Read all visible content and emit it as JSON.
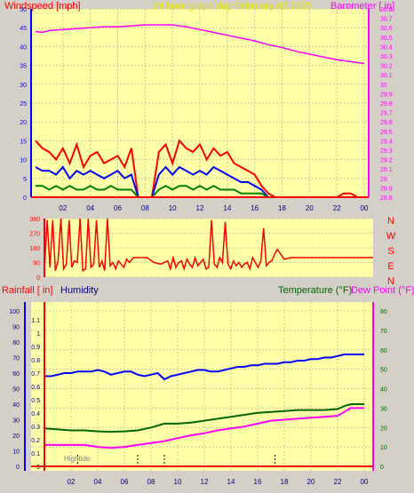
{
  "header": {
    "left_label": "Windspeed [mph]",
    "center_label": "24 hour graph day   February 02 2025",
    "right_label": "Barometer [ in]"
  },
  "colors": {
    "background": "#d4d0c8",
    "plot_bg": "#ffffa8",
    "grid": "#c8c8a0",
    "red": "#ff0000",
    "blue": "#0000ff",
    "green": "#008000",
    "magenta": "#ff00ff",
    "navy": "#000080",
    "darkgreen": "#006400",
    "title_yellow": "#e0e000"
  },
  "chart_data": [
    {
      "type": "line",
      "title": "24 hour graph day   February 02 2025",
      "ylabel": "Windspeed [mph]",
      "y2label": "Barometer [ in]",
      "x_ticks": [
        "02",
        "04",
        "06",
        "08",
        "10",
        "12",
        "14",
        "16",
        "18",
        "20",
        "22",
        "00"
      ],
      "ylim": [
        0,
        50
      ],
      "y_ticks": [
        0,
        5,
        10,
        15,
        20,
        25,
        30,
        35,
        40,
        45,
        50
      ],
      "y2lim": [
        28.8,
        30.8
      ],
      "y2_ticks": [
        "28.8",
        "28.9",
        "29",
        "29.1",
        "29.2",
        "29.3",
        "29.4",
        "29.5",
        "29.6",
        "29.7",
        "29.8",
        "29.9",
        "30",
        "30.1",
        "30.2",
        "30.3",
        "30.4",
        "30.5",
        "30.6",
        "30.7",
        "30.8"
      ],
      "series": [
        {
          "color": "#ff00ff",
          "axis": "y2",
          "x": [
            0.0,
            0.5,
            1.0,
            2.0,
            3.0,
            4.0,
            5.0,
            6.0,
            7.0,
            8.0,
            9.0,
            10.0,
            11.0,
            12.0,
            13.0,
            14.0,
            15.0,
            16.0,
            17.0,
            18.0,
            19.0,
            20.0,
            21.0,
            22.0,
            23.0,
            24.0
          ],
          "values": [
            30.56,
            30.55,
            30.57,
            30.58,
            30.59,
            30.6,
            30.61,
            30.61,
            30.62,
            30.63,
            30.63,
            30.63,
            30.61,
            30.58,
            30.55,
            30.52,
            30.49,
            30.46,
            30.42,
            30.39,
            30.35,
            30.32,
            30.29,
            30.26,
            30.24,
            30.22
          ]
        },
        {
          "color": "#ff0000",
          "axis": "y",
          "x": [
            0.0,
            0.5,
            1.0,
            1.5,
            2.0,
            2.5,
            3.0,
            3.5,
            4.0,
            4.5,
            5.0,
            5.5,
            6.0,
            6.5,
            7.0,
            7.5,
            8.0,
            8.5,
            9.0,
            9.5,
            10.0,
            10.5,
            11.0,
            11.5,
            12.0,
            12.5,
            13.0,
            13.5,
            14.0,
            14.5,
            15.0,
            15.5,
            16.0,
            16.5,
            17.0,
            17.5,
            18.0,
            19.0,
            20.0,
            21.0,
            22.0,
            22.5,
            23.0,
            23.5,
            24.0
          ],
          "values": [
            15,
            13,
            12,
            10,
            13,
            9,
            14,
            8,
            11,
            12,
            9,
            10,
            11,
            8,
            13,
            0,
            0,
            0,
            12,
            14,
            9,
            15,
            13,
            12,
            14,
            10,
            13,
            11,
            12,
            9,
            8,
            7,
            6,
            3,
            1,
            0,
            0,
            0,
            0,
            0,
            0,
            1,
            1,
            0,
            0
          ]
        },
        {
          "color": "#0000ff",
          "axis": "y",
          "x": [
            0.0,
            0.5,
            1.0,
            1.5,
            2.0,
            2.5,
            3.0,
            3.5,
            4.0,
            4.5,
            5.0,
            5.5,
            6.0,
            6.5,
            7.0,
            7.5,
            8.0,
            8.5,
            9.0,
            9.5,
            10.0,
            10.5,
            11.0,
            11.5,
            12.0,
            12.5,
            13.0,
            13.5,
            14.0,
            14.5,
            15.0,
            15.5,
            16.0,
            16.5,
            17.0
          ],
          "values": [
            8,
            7,
            7,
            6,
            8,
            5,
            7,
            6,
            7,
            6,
            5,
            6,
            7,
            5,
            6,
            0,
            0,
            0,
            6,
            8,
            6,
            8,
            7,
            6,
            7,
            6,
            8,
            7,
            6,
            5,
            4,
            4,
            3,
            2,
            0
          ]
        },
        {
          "color": "#008000",
          "axis": "y",
          "x": [
            0.0,
            0.5,
            1.0,
            1.5,
            2.0,
            2.5,
            3.0,
            3.5,
            4.0,
            4.5,
            5.0,
            5.5,
            6.0,
            6.5,
            7.0,
            7.5,
            8.0,
            8.5,
            9.0,
            9.5,
            10.0,
            10.5,
            11.0,
            11.5,
            12.0,
            12.5,
            13.0,
            13.5,
            14.0,
            14.5,
            15.0,
            15.5,
            16.0,
            16.5,
            17.0
          ],
          "values": [
            3,
            3,
            2,
            3,
            2,
            3,
            2,
            2,
            3,
            2,
            2,
            3,
            2,
            2,
            2,
            0,
            0,
            0,
            2,
            3,
            2,
            3,
            3,
            2,
            3,
            2,
            3,
            2,
            2,
            2,
            1,
            1,
            1,
            1,
            0
          ]
        }
      ]
    },
    {
      "type": "line",
      "y_ticks": [
        "0",
        "90",
        "180",
        "270",
        "360"
      ],
      "ylim": [
        0,
        360
      ],
      "x_ticks": [],
      "compass_labels": [
        "N",
        "W",
        "S",
        "E",
        "N"
      ],
      "series": [
        {
          "color": "#ff0000",
          "x": [
            0.0,
            0.2,
            0.4,
            0.6,
            0.8,
            1.0,
            1.2,
            1.4,
            1.6,
            1.8,
            2.0,
            2.2,
            2.4,
            2.6,
            2.8,
            3.0,
            3.2,
            3.4,
            3.6,
            3.8,
            4.0,
            4.2,
            4.4,
            4.6,
            4.8,
            5.0,
            5.2,
            5.4,
            5.6,
            5.8,
            6.0,
            6.2,
            6.5,
            7.0,
            7.5,
            8.0,
            8.5,
            9.0,
            9.2,
            9.4,
            9.6,
            9.8,
            10.0,
            10.2,
            10.4,
            10.6,
            10.8,
            11.0,
            11.2,
            11.4,
            11.6,
            11.8,
            12.0,
            12.2,
            12.4,
            12.6,
            12.8,
            13.0,
            13.2,
            13.4,
            13.6,
            13.8,
            14.0,
            14.2,
            14.4,
            14.6,
            14.8,
            15.0,
            15.2,
            15.4,
            15.6,
            15.8,
            16.0,
            16.2,
            16.4,
            16.6,
            16.8,
            17.0,
            17.5,
            18.0,
            19.0,
            20.0,
            21.0,
            22.0,
            23.0,
            24.0
          ],
          "values": [
            50,
            350,
            60,
            350,
            40,
            100,
            360,
            50,
            80,
            350,
            60,
            100,
            90,
            360,
            40,
            50,
            360,
            60,
            80,
            350,
            60,
            100,
            40,
            360,
            70,
            90,
            50,
            100,
            80,
            60,
            110,
            90,
            120,
            120,
            120,
            90,
            80,
            100,
            50,
            120,
            60,
            90,
            100,
            50,
            110,
            80,
            60,
            120,
            70,
            90,
            110,
            50,
            60,
            350,
            80,
            60,
            120,
            90,
            340,
            80,
            50,
            100,
            70,
            90,
            60,
            80,
            90,
            50,
            120,
            90,
            60,
            100,
            300,
            70,
            90,
            100,
            140,
            170,
            110,
            120,
            120,
            120,
            120,
            120,
            120,
            120
          ]
        }
      ]
    },
    {
      "type": "line",
      "left_label_1": "Rainfall [ in]",
      "left_label_2": "Humidity",
      "right_label_1": "Temperature (°F)",
      "right_label_2": "Dew Point (°F)",
      "annotation": "Hightide",
      "tide_marks": [
        2.5,
        7.0,
        9.0,
        17.3
      ],
      "x_ticks": [
        "02",
        "04",
        "06",
        "08",
        "10",
        "12",
        "14",
        "16",
        "18",
        "20",
        "22",
        "00"
      ],
      "rain_ticks": [
        "0",
        "0.1",
        "0.2",
        "0.3",
        "0.4",
        "0.5",
        "0.6",
        "0.7",
        "0.8",
        "0.9",
        "1",
        "1.1"
      ],
      "hum_ticks": [
        "0",
        "10",
        "20",
        "30",
        "40",
        "50",
        "60",
        "70",
        "80",
        "90",
        "100"
      ],
      "temp_ticks": [
        "0",
        "10",
        "20",
        "30",
        "40",
        "50",
        "60",
        "70",
        "80"
      ],
      "ylim": [
        0,
        80
      ],
      "series": [
        {
          "color": "#0000ff",
          "x": [
            0.0,
            0.5,
            1.0,
            1.5,
            2.0,
            2.5,
            3.0,
            3.5,
            4.0,
            4.5,
            5.0,
            5.5,
            6.0,
            6.5,
            7.0,
            7.5,
            8.0,
            8.5,
            9.0,
            9.5,
            10.0,
            10.5,
            11.0,
            11.5,
            12.0,
            12.5,
            13.0,
            13.5,
            14.0,
            14.5,
            15.0,
            15.5,
            16.0,
            16.5,
            17.0,
            17.5,
            18.0,
            18.5,
            19.0,
            19.5,
            20.0,
            20.5,
            21.0,
            21.5,
            22.0,
            22.5,
            23.0,
            23.5,
            24.0
          ],
          "values": [
            58,
            58,
            59,
            60,
            60,
            61,
            61,
            61,
            62,
            61,
            59,
            60,
            61,
            61,
            59,
            58,
            59,
            60,
            56,
            58,
            59,
            60,
            61,
            62,
            62,
            61,
            61,
            62,
            63,
            64,
            64,
            65,
            65,
            66,
            66,
            66,
            67,
            67,
            68,
            68,
            69,
            69,
            70,
            70,
            71,
            72,
            72,
            72,
            72
          ]
        },
        {
          "color": "#006400",
          "x": [
            0.0,
            1.0,
            2.0,
            3.0,
            4.0,
            5.0,
            6.0,
            7.0,
            8.0,
            9.0,
            10.0,
            11.0,
            12.0,
            13.0,
            14.0,
            15.0,
            16.0,
            17.0,
            18.0,
            19.0,
            20.0,
            21.0,
            22.0,
            22.5,
            23.0,
            24.0
          ],
          "values": [
            19.5,
            19,
            18.5,
            18.5,
            18,
            17.8,
            18,
            18.5,
            20,
            22,
            22,
            22.5,
            23.5,
            24.5,
            25.5,
            26.5,
            27.5,
            28,
            28.5,
            29,
            29,
            29,
            29.5,
            31,
            32,
            32
          ]
        },
        {
          "color": "#ff00ff",
          "x": [
            0.0,
            1.0,
            2.0,
            3.0,
            4.0,
            5.0,
            6.0,
            7.0,
            8.0,
            9.0,
            10.0,
            11.0,
            12.0,
            13.0,
            14.0,
            15.0,
            16.0,
            17.0,
            18.0,
            19.0,
            20.0,
            21.0,
            22.0,
            22.5,
            23.0,
            24.0
          ],
          "values": [
            11,
            11,
            11,
            11,
            10,
            9.5,
            10,
            11,
            12,
            13,
            14.5,
            16,
            17,
            18.5,
            19.5,
            20.5,
            22,
            23.5,
            24,
            24.5,
            25,
            25.5,
            26,
            28,
            30,
            30
          ]
        }
      ]
    }
  ]
}
